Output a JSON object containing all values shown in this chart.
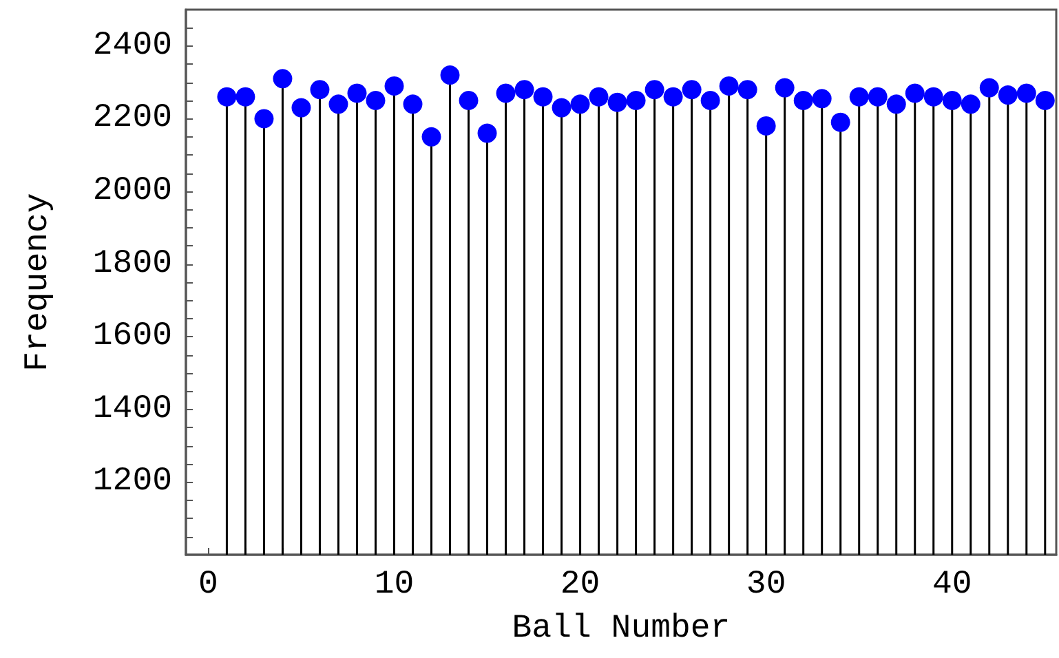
{
  "chart_data": {
    "type": "lollipop",
    "xlabel": "Ball Number",
    "ylabel": "Frequency",
    "x": [
      1,
      2,
      3,
      4,
      5,
      6,
      7,
      8,
      9,
      10,
      11,
      12,
      13,
      14,
      15,
      16,
      17,
      18,
      19,
      20,
      21,
      22,
      23,
      24,
      25,
      26,
      27,
      28,
      29,
      30,
      31,
      32,
      33,
      34,
      35,
      36,
      37,
      38,
      39,
      40,
      41,
      42,
      43,
      44,
      45
    ],
    "series": [
      {
        "color": "#0000ff",
        "values": [
          2260,
          2260,
          2200,
          2310,
          2230,
          2280,
          2240,
          2270,
          2250,
          2290,
          2240,
          2150,
          2320,
          2250,
          2160,
          2270,
          2280,
          2260,
          2230,
          2240,
          2260,
          2245,
          2250,
          2280,
          2260,
          2280,
          2250,
          2290,
          2280,
          2180,
          2285,
          2250,
          2255,
          2190,
          2260,
          2260,
          2240,
          2270,
          2260,
          2250,
          2240,
          2285,
          2265,
          2270,
          2250
        ]
      }
    ],
    "xlim": [
      -1.2,
      45.6
    ],
    "xticks": [
      0,
      {
        "value": 2,
        "label": null
      },
      {
        "value": 4,
        "label": null
      },
      {
        "value": 6,
        "label": null
      },
      {
        "value": 8,
        "label": null
      },
      10,
      {
        "value": 12,
        "label": null
      },
      {
        "value": 14,
        "label": null
      },
      {
        "value": 16,
        "label": null
      },
      {
        "value": 18,
        "label": null
      },
      20,
      {
        "value": 22,
        "label": null
      },
      {
        "value": 24,
        "label": null
      },
      {
        "value": 26,
        "label": null
      },
      {
        "value": 28,
        "label": null
      },
      30,
      {
        "value": 32,
        "label": null
      },
      {
        "value": 34,
        "label": null
      },
      {
        "value": 36,
        "label": null
      },
      {
        "value": 38,
        "label": null
      },
      40,
      {
        "value": 42,
        "label": null
      },
      {
        "value": 44,
        "label": null
      }
    ],
    "ylim": [
      1000,
      2500
    ],
    "yticks": [
      {
        "value": 1050,
        "label": null
      },
      {
        "value": 1100,
        "label": null
      },
      {
        "value": 1150,
        "label": null
      },
      1200,
      {
        "value": 1250,
        "label": null
      },
      {
        "value": 1300,
        "label": null
      },
      {
        "value": 1350,
        "label": null
      },
      1400,
      {
        "value": 1450,
        "label": null
      },
      {
        "value": 1500,
        "label": null
      },
      {
        "value": 1550,
        "label": null
      },
      1600,
      {
        "value": 1650,
        "label": null
      },
      {
        "value": 1700,
        "label": null
      },
      {
        "value": 1750,
        "label": null
      },
      1800,
      {
        "value": 1850,
        "label": null
      },
      {
        "value": 1900,
        "label": null
      },
      {
        "value": 1950,
        "label": null
      },
      2000,
      {
        "value": 2050,
        "label": null
      },
      {
        "value": 2100,
        "label": null
      },
      {
        "value": 2150,
        "label": null
      },
      2200,
      {
        "value": 2250,
        "label": null
      },
      {
        "value": 2300,
        "label": null
      },
      {
        "value": 2350,
        "label": null
      },
      2400,
      {
        "value": 2450,
        "label": null
      }
    ],
    "marker": "circle",
    "grid": false
  }
}
